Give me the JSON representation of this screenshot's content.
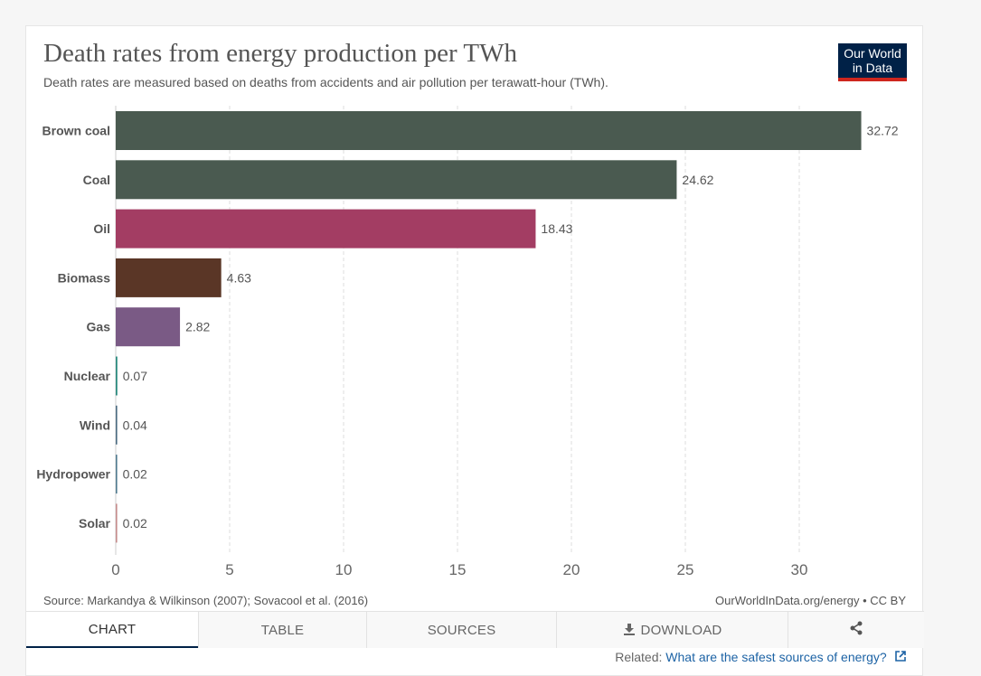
{
  "header": {
    "title": "Death rates from energy production per TWh",
    "subtitle": "Death rates are measured based on deaths from accidents and air pollution per terawatt-hour (TWh).",
    "logo_line1": "Our World",
    "logo_line2": "in Data"
  },
  "footer": {
    "source": "Source: Markandya & Wilkinson (2007); Sovacool et al. (2016)",
    "credit": "OurWorldInData.org/energy • CC BY"
  },
  "tabs": {
    "chart": "CHART",
    "table": "TABLE",
    "sources": "SOURCES",
    "download": "DOWNLOAD",
    "download_icon": "download-icon",
    "share_icon": "share-icon"
  },
  "related": {
    "prefix": "Related: ",
    "link": "What are the safest sources of energy?",
    "icon": "external-link-icon"
  },
  "chart_data": {
    "type": "bar",
    "orientation": "horizontal",
    "categories": [
      "Brown coal",
      "Coal",
      "Oil",
      "Biomass",
      "Gas",
      "Nuclear",
      "Wind",
      "Hydropower",
      "Solar"
    ],
    "values": [
      32.72,
      24.62,
      18.43,
      4.63,
      2.82,
      0.07,
      0.04,
      0.02,
      0.02
    ],
    "value_labels": [
      "32.72",
      "24.62",
      "18.43",
      "4.63",
      "2.82",
      "0.07",
      "0.04",
      "0.02",
      "0.02"
    ],
    "colors": [
      "#4a5a50",
      "#4a5a50",
      "#a33d63",
      "#5a3626",
      "#7a5a85",
      "#2a8a7e",
      "#4a6a80",
      "#4f7a8f",
      "#c58b8b"
    ],
    "xlim": [
      0,
      33
    ],
    "xticks": [
      0,
      5,
      10,
      15,
      20,
      25,
      30
    ],
    "grid": true
  }
}
